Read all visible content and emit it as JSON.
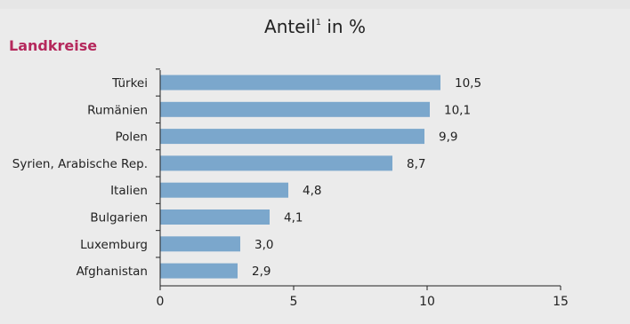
{
  "header": {
    "title": "Anteil",
    "title_sup": "1",
    "title_suffix": " in %",
    "subtitle": "Landkreise"
  },
  "colors": {
    "bar": "#7ba7cc",
    "subtitle": "#b5285c",
    "axis": "#222222"
  },
  "chart_data": {
    "type": "bar",
    "orientation": "horizontal",
    "title": "Anteil¹ in %",
    "subtitle": "Landkreise",
    "categories": [
      "Türkei",
      "Rumänien",
      "Polen",
      "Syrien, Arabische Rep.",
      "Italien",
      "Bulgarien",
      "Luxemburg",
      "Afghanistan"
    ],
    "values": [
      10.5,
      10.1,
      9.9,
      8.7,
      4.8,
      4.1,
      3.0,
      2.9
    ],
    "value_labels": [
      "10,5",
      "10,1",
      "9,9",
      "8,7",
      "4,8",
      "4,1",
      "3,0",
      "2,9"
    ],
    "xlim": [
      0,
      15
    ],
    "xticks": [
      0,
      5,
      10,
      15
    ],
    "xtick_labels": [
      "0",
      "5",
      "10",
      "15"
    ],
    "grid": false,
    "legend": "none"
  }
}
